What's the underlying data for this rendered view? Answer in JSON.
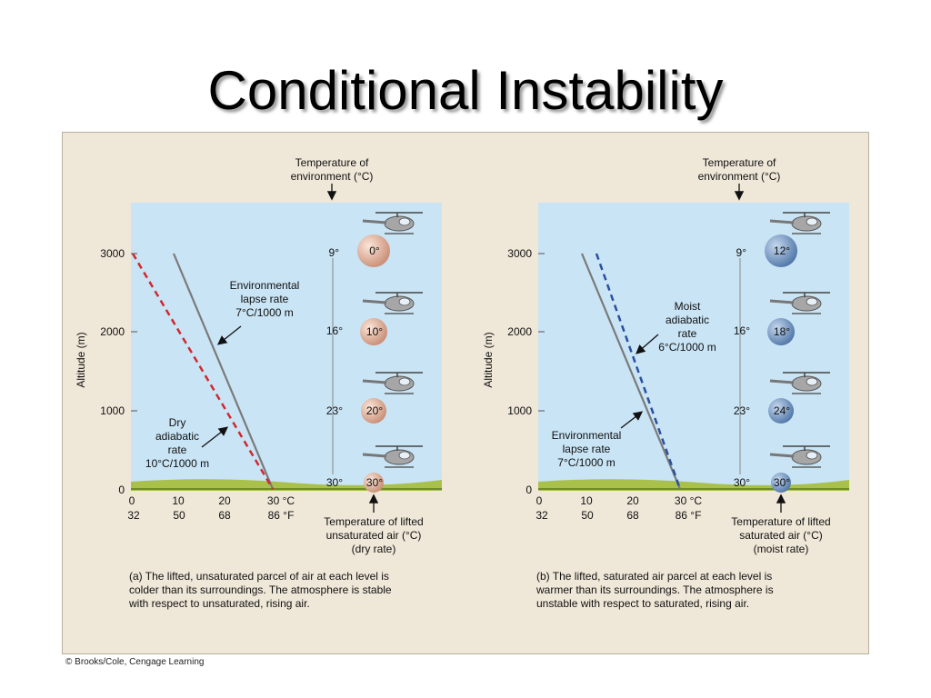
{
  "title": "Conditional Instability",
  "credit": "© Brooks/Cole, Cengage Learning",
  "colors": {
    "sky": "#c9e4f5",
    "ground": "#a9c14a",
    "env_line": "#7a7a7a",
    "dry_line": "#d0282e",
    "moist_line": "#2a4f9e",
    "dry_balloon": "#e3b59f",
    "moist_balloon": "#7e9fc9",
    "panel_bg": "#efe7d8"
  },
  "panels": [
    {
      "id": "a",
      "y_axis": {
        "label": "Altitude (m)",
        "ticks": [
          "3000",
          "2000",
          "1000",
          "0"
        ]
      },
      "x_axis_c": [
        "0",
        "10",
        "20",
        "30 °C"
      ],
      "x_axis_f": [
        "32",
        "50",
        "68",
        "86 °F"
      ],
      "env_header": [
        "Temperature of",
        "environment (°C)"
      ],
      "env_temps": [
        "9°",
        "16°",
        "23°",
        "30°"
      ],
      "parcel_temps": [
        "0°",
        "10°",
        "20°",
        "30°"
      ],
      "lifted_label": [
        "Temperature of lifted",
        "unsaturated air (°C)",
        "(dry rate)"
      ],
      "label_env": [
        "Environmental",
        "lapse rate",
        "7°C/1000 m"
      ],
      "label_parcel": [
        "Dry",
        "adiabatic",
        "rate",
        "10°C/1000 m"
      ],
      "caption": [
        "(a) The lifted, unsaturated parcel of air at each level is",
        "colder than its surroundings. The atmosphere is stable",
        "with respect to unsaturated, rising air."
      ]
    },
    {
      "id": "b",
      "y_axis": {
        "label": "Altitude (m)",
        "ticks": [
          "3000",
          "2000",
          "1000",
          "0"
        ]
      },
      "x_axis_c": [
        "0",
        "10",
        "20",
        "30 °C"
      ],
      "x_axis_f": [
        "32",
        "50",
        "68",
        "86 °F"
      ],
      "env_header": [
        "Temperature of",
        "environment (°C)"
      ],
      "env_temps": [
        "9°",
        "16°",
        "23°",
        "30°"
      ],
      "parcel_temps": [
        "12°",
        "18°",
        "24°",
        "30°"
      ],
      "lifted_label": [
        "Temperature of lifted",
        "saturated air (°C)",
        "(moist rate)"
      ],
      "label_env": [
        "Environmental",
        "lapse rate",
        "7°C/1000 m"
      ],
      "label_parcel": [
        "Moist",
        "adiabatic",
        "rate",
        "6°C/1000 m"
      ],
      "caption": [
        "(b) The lifted, saturated air parcel at each level is",
        "warmer than its surroundings. The atmosphere is",
        "unstable with respect to saturated, rising air."
      ]
    }
  ]
}
